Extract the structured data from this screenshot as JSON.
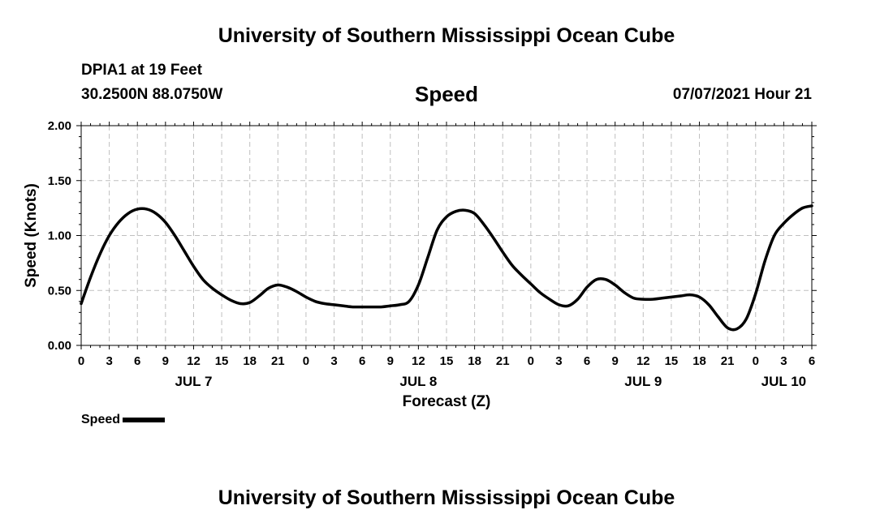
{
  "header": {
    "title": "University of Southern Mississippi Ocean Cube",
    "station": "DPIA1 at 19 Feet",
    "coords": "30.2500N  88.0750W",
    "variable": "Speed",
    "datetime": "07/07/2021 Hour 21"
  },
  "footer": {
    "title": "University of Southern Mississippi Ocean Cube"
  },
  "legend": {
    "label": "Speed"
  },
  "colors": {
    "line": "#000000",
    "grid": "#bfbfbf",
    "axis": "#000000"
  },
  "chart_data": {
    "type": "line",
    "title": "Speed",
    "xlabel": "Forecast (Z)",
    "ylabel": "Speed (Knots)",
    "ylim": [
      0,
      2
    ],
    "yticks": [
      "0.00",
      "0.50",
      "1.00",
      "1.50",
      "2.00"
    ],
    "xlim_hours": [
      0,
      78
    ],
    "xticks": [
      "0",
      "3",
      "6",
      "9",
      "12",
      "15",
      "18",
      "21",
      "0",
      "3",
      "6",
      "9",
      "12",
      "15",
      "18",
      "21",
      "0",
      "3",
      "6",
      "9",
      "12",
      "15",
      "18",
      "21",
      "0",
      "3",
      "6"
    ],
    "day_labels": [
      {
        "label": "JUL 7",
        "hour": 12
      },
      {
        "label": "JUL 8",
        "hour": 36
      },
      {
        "label": "JUL 9",
        "hour": 60
      },
      {
        "label": "JUL 10",
        "hour": 75
      }
    ],
    "grid": true,
    "legend_position": "bottom-left",
    "series": [
      {
        "name": "Speed",
        "x": [
          0,
          1,
          2,
          3,
          4,
          5,
          6,
          7,
          8,
          9,
          10,
          11,
          12,
          13,
          14,
          15,
          16,
          17,
          18,
          19,
          20,
          21,
          22,
          23,
          24,
          25,
          26,
          27,
          28,
          29,
          30,
          31,
          32,
          33,
          34,
          35,
          36,
          37,
          38,
          39,
          40,
          41,
          42,
          43,
          44,
          45,
          46,
          47,
          48,
          49,
          50,
          51,
          52,
          53,
          54,
          55,
          56,
          57,
          58,
          59,
          60,
          61,
          62,
          63,
          64,
          65,
          66,
          67,
          68,
          69,
          70,
          71,
          72,
          73,
          74,
          75,
          76,
          77,
          78
        ],
        "values": [
          0.38,
          0.62,
          0.83,
          1.0,
          1.12,
          1.2,
          1.24,
          1.24,
          1.2,
          1.12,
          1.0,
          0.86,
          0.72,
          0.6,
          0.52,
          0.46,
          0.41,
          0.38,
          0.39,
          0.45,
          0.52,
          0.55,
          0.53,
          0.49,
          0.44,
          0.4,
          0.38,
          0.37,
          0.36,
          0.35,
          0.35,
          0.35,
          0.35,
          0.36,
          0.37,
          0.4,
          0.55,
          0.8,
          1.05,
          1.17,
          1.22,
          1.23,
          1.2,
          1.1,
          0.98,
          0.85,
          0.73,
          0.64,
          0.56,
          0.48,
          0.42,
          0.37,
          0.36,
          0.42,
          0.53,
          0.6,
          0.6,
          0.55,
          0.48,
          0.43,
          0.42,
          0.42,
          0.43,
          0.44,
          0.45,
          0.46,
          0.44,
          0.37,
          0.26,
          0.16,
          0.15,
          0.24,
          0.47,
          0.77,
          1.0,
          1.11,
          1.19,
          1.25,
          1.27
        ]
      }
    ]
  }
}
